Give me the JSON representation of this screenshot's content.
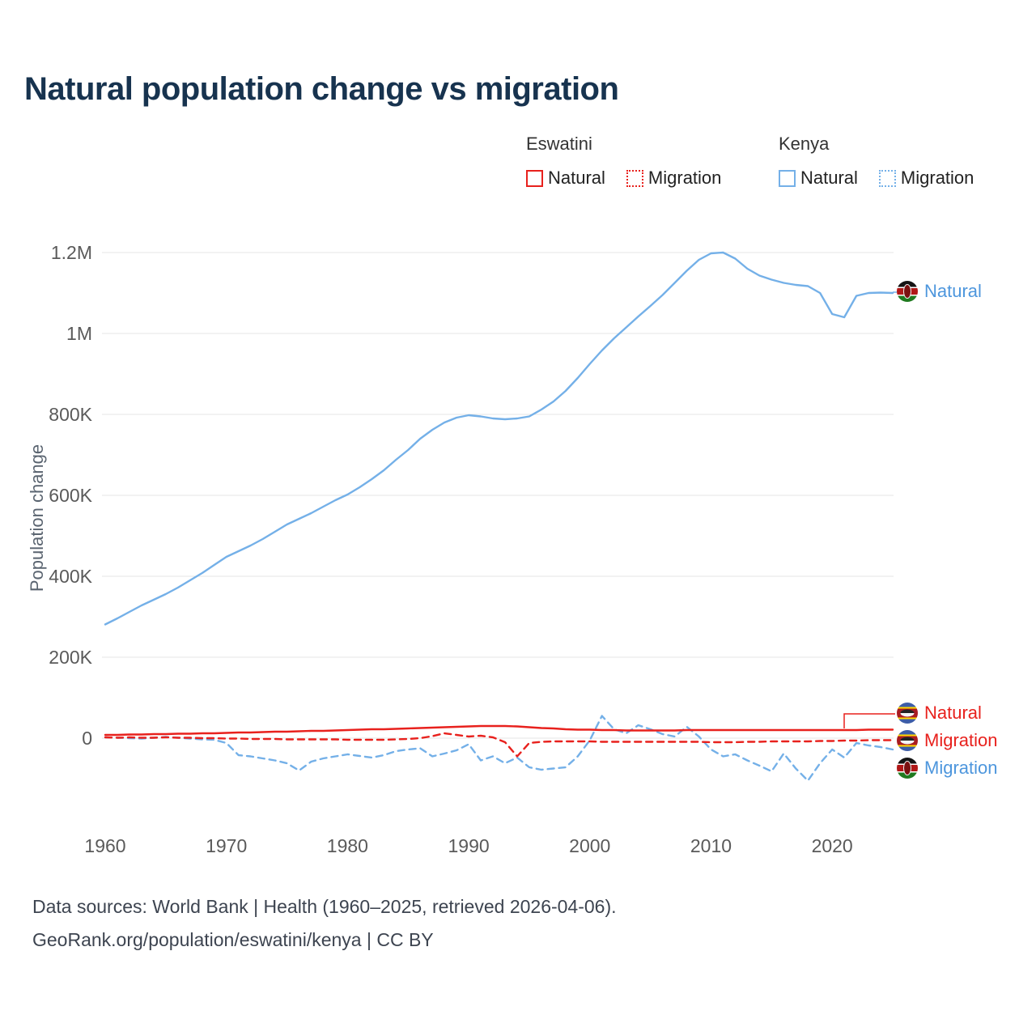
{
  "title": "Natural population change vs migration",
  "legend": {
    "groups": [
      {
        "name": "Eswatini",
        "color": "#e8211d",
        "items": [
          {
            "label": "Natural",
            "line_style": "solid"
          },
          {
            "label": "Migration",
            "line_style": "dotted"
          }
        ]
      },
      {
        "name": "Kenya",
        "color": "#74b0e8",
        "items": [
          {
            "label": "Natural",
            "line_style": "solid"
          },
          {
            "label": "Migration",
            "line_style": "dotted"
          }
        ]
      }
    ]
  },
  "end_labels": [
    {
      "text": "Natural",
      "country": "kenya",
      "color": "#4d96dd"
    },
    {
      "text": "Natural",
      "country": "eswatini",
      "color": "#e8211d"
    },
    {
      "text": "Migration",
      "country": "eswatini",
      "color": "#e8211d"
    },
    {
      "text": "Migration",
      "country": "kenya",
      "color": "#4d96dd"
    }
  ],
  "footer": {
    "line1": "Data sources: World Bank | Health (1960–2025, retrieved 2026-04-06).",
    "line2": "GeoRank.org/population/eswatini/kenya | CC BY"
  },
  "chart_data": {
    "type": "line",
    "title": "Natural population change vs migration",
    "xlabel": "",
    "ylabel": "Population change",
    "xlim": [
      1960,
      2025
    ],
    "ylim": [
      -150000,
      1250000
    ],
    "grid": "horizontal",
    "legend_position": "top-right",
    "x_label_ticks": [
      1960,
      1970,
      1980,
      1990,
      2000,
      2010,
      2020
    ],
    "y_ticks": [
      {
        "value": 0,
        "label": "0"
      },
      {
        "value": 200000,
        "label": "200K"
      },
      {
        "value": 400000,
        "label": "400K"
      },
      {
        "value": 600000,
        "label": "600K"
      },
      {
        "value": 800000,
        "label": "800K"
      },
      {
        "value": 1000000,
        "label": "1M"
      },
      {
        "value": 1200000,
        "label": "1.2M"
      }
    ],
    "x": [
      1960,
      1961,
      1962,
      1963,
      1964,
      1965,
      1966,
      1967,
      1968,
      1969,
      1970,
      1971,
      1972,
      1973,
      1974,
      1975,
      1976,
      1977,
      1978,
      1979,
      1980,
      1981,
      1982,
      1983,
      1984,
      1985,
      1986,
      1987,
      1988,
      1989,
      1990,
      1991,
      1992,
      1993,
      1994,
      1995,
      1996,
      1997,
      1998,
      1999,
      2000,
      2001,
      2002,
      2003,
      2004,
      2005,
      2006,
      2007,
      2008,
      2009,
      2010,
      2011,
      2012,
      2013,
      2014,
      2015,
      2016,
      2017,
      2018,
      2019,
      2020,
      2021,
      2022,
      2023,
      2024,
      2025
    ],
    "series": [
      {
        "id": "kenya-migration",
        "name": "Kenya Migration",
        "color": "#74b0e8",
        "style": "dashed",
        "values": [
          2000,
          1000,
          0,
          -1000,
          1000,
          3000,
          1000,
          -1000,
          -3000,
          -4000,
          -12000,
          -42000,
          -45000,
          -50000,
          -55000,
          -62000,
          -80000,
          -58000,
          -50000,
          -45000,
          -40000,
          -44000,
          -48000,
          -42000,
          -32000,
          -28000,
          -25000,
          -45000,
          -38000,
          -30000,
          -15000,
          -55000,
          -45000,
          -62000,
          -48000,
          -72000,
          -78000,
          -75000,
          -72000,
          -45000,
          -5000,
          55000,
          22000,
          12000,
          32000,
          22000,
          10000,
          4000,
          28000,
          4000,
          -28000,
          -45000,
          -40000,
          -55000,
          -68000,
          -82000,
          -38000,
          -75000,
          -105000,
          -62000,
          -28000,
          -48000,
          -12000,
          -18000,
          -22000,
          -28000
        ]
      },
      {
        "id": "kenya-natural",
        "name": "Kenya Natural",
        "color": "#74b0e8",
        "style": "solid",
        "values": [
          281000,
          296000,
          312000,
          328000,
          342000,
          356000,
          372000,
          390000,
          408000,
          428000,
          448000,
          462000,
          476000,
          492000,
          510000,
          528000,
          542000,
          556000,
          572000,
          588000,
          602000,
          620000,
          640000,
          662000,
          688000,
          712000,
          740000,
          762000,
          780000,
          792000,
          798000,
          795000,
          790000,
          788000,
          790000,
          795000,
          812000,
          832000,
          858000,
          890000,
          925000,
          958000,
          988000,
          1015000,
          1042000,
          1068000,
          1095000,
          1125000,
          1155000,
          1182000,
          1198000,
          1200000,
          1185000,
          1160000,
          1143000,
          1133000,
          1125000,
          1120000,
          1117000,
          1100000,
          1048000,
          1040000,
          1093000,
          1100000,
          1101000,
          1100000
        ]
      },
      {
        "id": "eswatini-migration",
        "name": "Eswatini Migration",
        "color": "#e8211d",
        "style": "dashed",
        "values": [
          2000,
          1000,
          2000,
          1000,
          1000,
          2000,
          1000,
          1000,
          0,
          0,
          -1000,
          -1000,
          -2000,
          -2000,
          -2000,
          -3000,
          -3000,
          -3000,
          -3000,
          -3000,
          -4000,
          -4000,
          -4000,
          -4000,
          -3000,
          -2000,
          0,
          5000,
          12000,
          8000,
          4000,
          6000,
          2000,
          -10000,
          -45000,
          -12000,
          -9000,
          -8000,
          -8000,
          -8000,
          -8000,
          -9000,
          -9000,
          -9000,
          -9000,
          -9000,
          -9000,
          -9000,
          -9000,
          -9000,
          -10000,
          -10000,
          -10000,
          -9000,
          -9000,
          -8000,
          -8000,
          -8000,
          -8000,
          -7000,
          -7000,
          -6000,
          -6000,
          -5000,
          -5000,
          -5000
        ]
      },
      {
        "id": "eswatini-natural",
        "name": "Eswatini Natural",
        "color": "#e8211d",
        "style": "solid",
        "values": [
          8000,
          8000,
          9000,
          9000,
          10000,
          10000,
          11000,
          11000,
          12000,
          12000,
          13000,
          14000,
          14000,
          15000,
          16000,
          16000,
          17000,
          18000,
          18000,
          19000,
          20000,
          21000,
          22000,
          22000,
          23000,
          24000,
          25000,
          26000,
          27000,
          28000,
          29000,
          30000,
          30000,
          30000,
          29000,
          27000,
          25000,
          24000,
          22000,
          21000,
          21000,
          20000,
          20000,
          19000,
          19000,
          19000,
          19000,
          19000,
          20000,
          20000,
          20000,
          20000,
          20000,
          20000,
          20000,
          20000,
          20000,
          20000,
          20000,
          20000,
          20000,
          20000,
          20000,
          21000,
          21000,
          21000
        ]
      }
    ]
  }
}
